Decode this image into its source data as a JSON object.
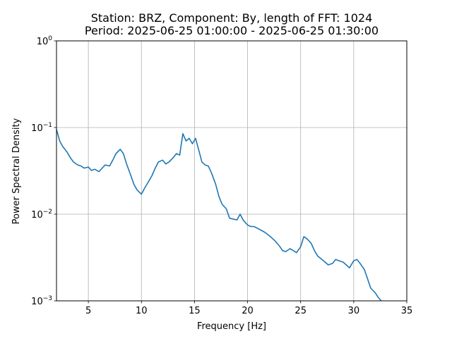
{
  "chart_data": {
    "type": "line",
    "title_line1": "Station: BRZ, Component: By, length of FFT: 1024",
    "title_line2": "Period: 2025-06-25 01:00:00 - 2025-06-25 01:30:00",
    "xlabel": "Frequency [Hz]",
    "ylabel": "Power Spectral Density",
    "xlim": [
      2,
      35
    ],
    "ylim": [
      0.001,
      1
    ],
    "yscale": "log",
    "grid": true,
    "line_color": "#1f77b4",
    "x_ticks": [
      {
        "value": 5,
        "label": "5"
      },
      {
        "value": 10,
        "label": "10"
      },
      {
        "value": 15,
        "label": "15"
      },
      {
        "value": 20,
        "label": "20"
      },
      {
        "value": 25,
        "label": "25"
      },
      {
        "value": 30,
        "label": "30"
      },
      {
        "value": 35,
        "label": "35"
      }
    ],
    "y_ticks": [
      {
        "value": 1,
        "base": "10",
        "exp": "0"
      },
      {
        "value": 0.1,
        "base": "10",
        "exp": "−1"
      },
      {
        "value": 0.01,
        "base": "10",
        "exp": "−2"
      },
      {
        "value": 0.001,
        "base": "10",
        "exp": "−3"
      }
    ],
    "series": [
      {
        "x": [
          2.0,
          2.3,
          2.6,
          3.0,
          3.3,
          3.6,
          4.0,
          4.3,
          4.6,
          5.0,
          5.3,
          5.6,
          6.0,
          6.3,
          6.6,
          7.0,
          7.3,
          7.6,
          8.0,
          8.3,
          8.6,
          9.0,
          9.3,
          9.6,
          10.0,
          10.3,
          10.6,
          11.0,
          11.3,
          11.6,
          12.0,
          12.3,
          12.6,
          13.0,
          13.3,
          13.6,
          13.9,
          14.2,
          14.5,
          14.8,
          15.1,
          15.4,
          15.7,
          16.0,
          16.3,
          16.6,
          17.0,
          17.3,
          17.6,
          18.0,
          18.3,
          18.6,
          19.0,
          19.3,
          19.6,
          20.0,
          20.3,
          20.6,
          21.0,
          21.3,
          21.6,
          22.0,
          22.3,
          22.6,
          23.0,
          23.3,
          23.6,
          24.0,
          24.3,
          24.6,
          25.0,
          25.3,
          25.6,
          26.0,
          26.3,
          26.6,
          27.0,
          27.3,
          27.6,
          28.0,
          28.3,
          28.6,
          29.0,
          29.3,
          29.6,
          30.0,
          30.3,
          30.6,
          31.0,
          31.3,
          31.6,
          32.0,
          32.3,
          32.6
        ],
        "y": [
          0.095,
          0.07,
          0.06,
          0.052,
          0.045,
          0.04,
          0.037,
          0.036,
          0.034,
          0.035,
          0.032,
          0.033,
          0.031,
          0.034,
          0.037,
          0.036,
          0.042,
          0.05,
          0.056,
          0.05,
          0.038,
          0.028,
          0.022,
          0.019,
          0.017,
          0.02,
          0.023,
          0.028,
          0.034,
          0.04,
          0.042,
          0.038,
          0.04,
          0.045,
          0.05,
          0.048,
          0.085,
          0.07,
          0.075,
          0.065,
          0.075,
          0.055,
          0.04,
          0.037,
          0.036,
          0.03,
          0.022,
          0.016,
          0.013,
          0.0115,
          0.009,
          0.0088,
          0.0086,
          0.01,
          0.0085,
          0.0075,
          0.0072,
          0.0072,
          0.0068,
          0.0065,
          0.0062,
          0.0057,
          0.0053,
          0.0049,
          0.0043,
          0.0038,
          0.0037,
          0.004,
          0.0038,
          0.0036,
          0.0042,
          0.0055,
          0.0052,
          0.0046,
          0.0038,
          0.0033,
          0.003,
          0.0028,
          0.0026,
          0.0027,
          0.003,
          0.0029,
          0.0028,
          0.0026,
          0.0024,
          0.0029,
          0.003,
          0.0027,
          0.0023,
          0.0018,
          0.0014,
          0.00125,
          0.0011,
          0.001
        ]
      }
    ]
  }
}
